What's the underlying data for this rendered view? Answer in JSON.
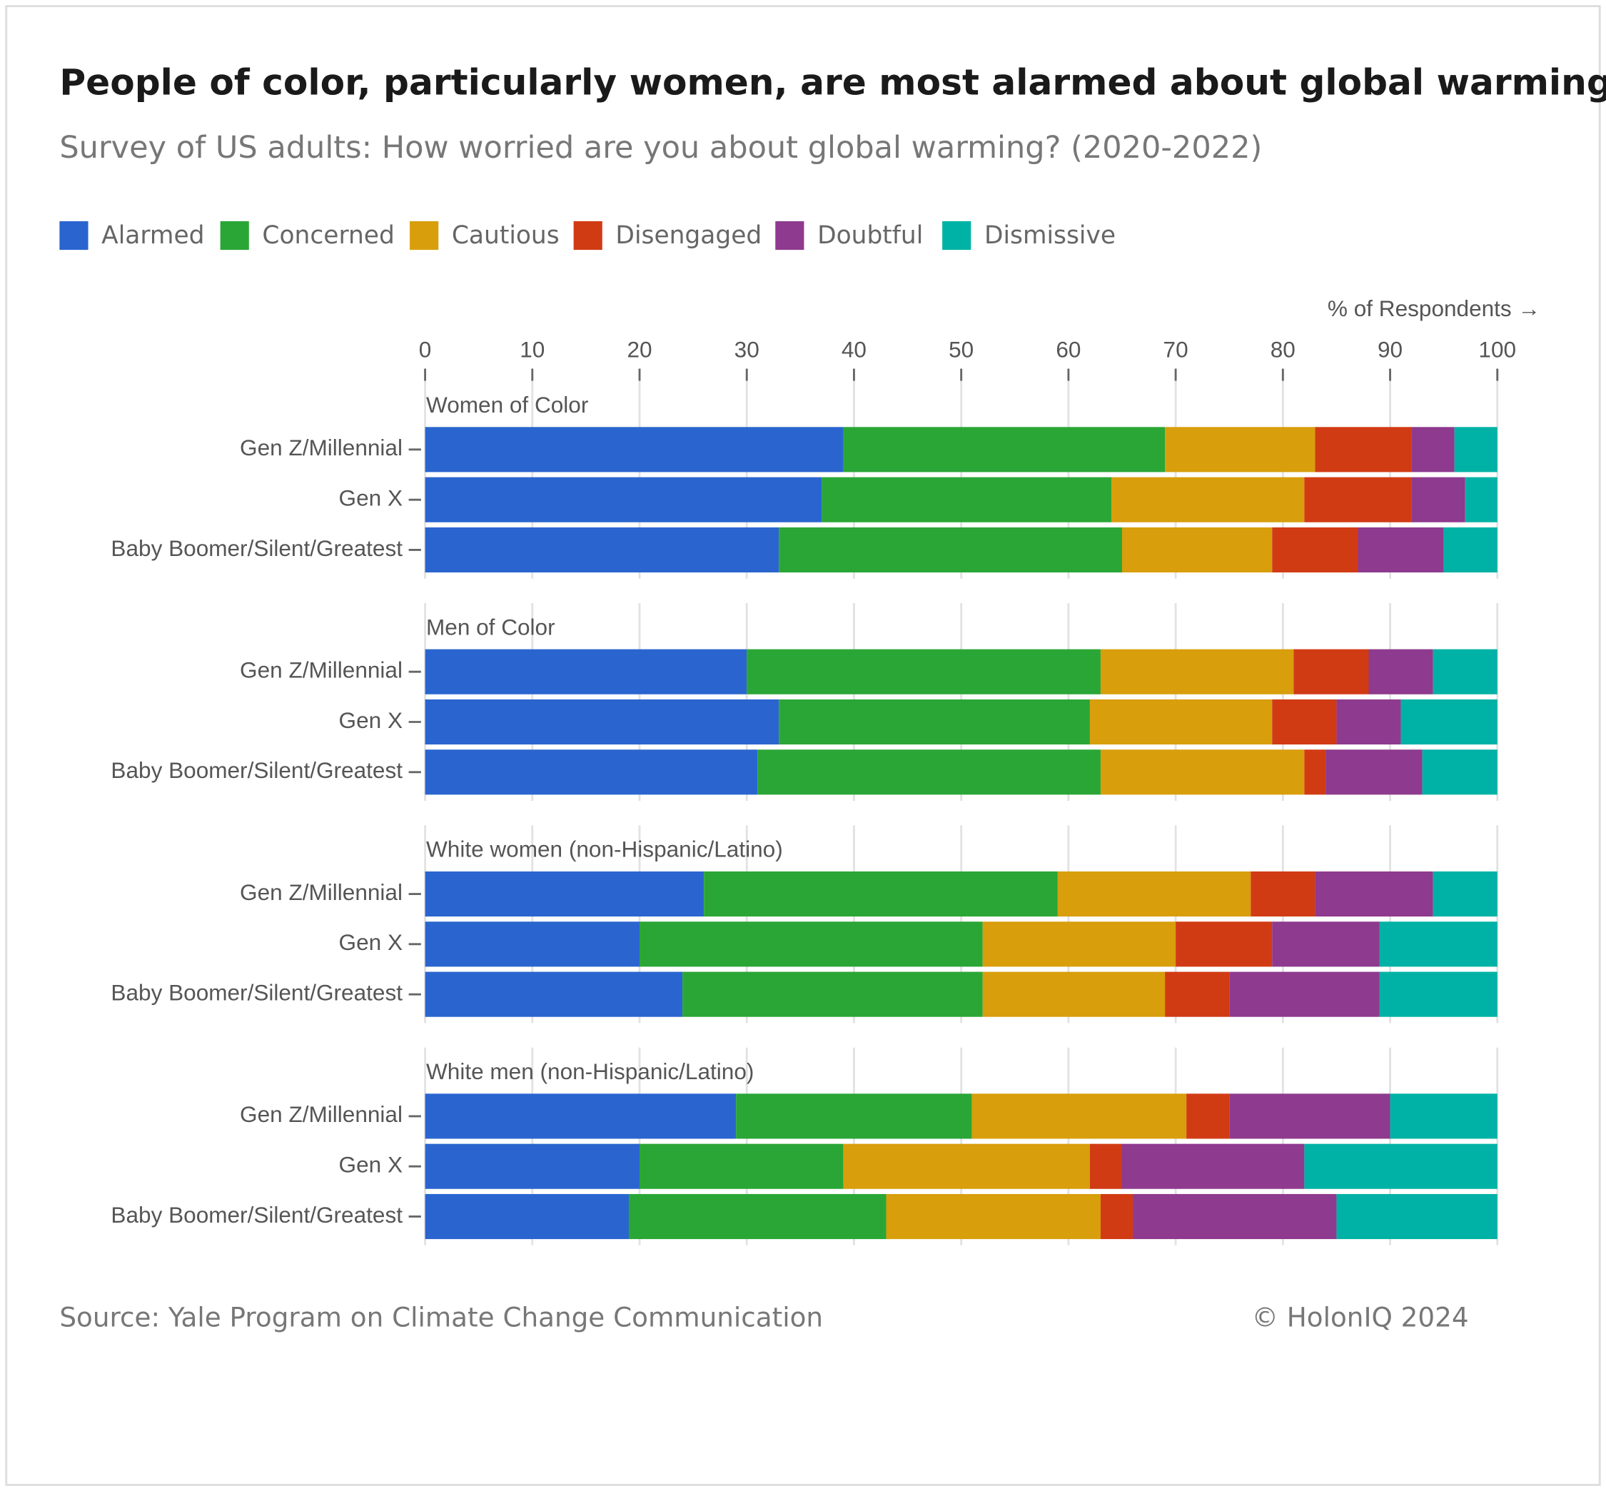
{
  "chart_data": {
    "type": "stacked-bar",
    "title": "People of color, particularly women, are most alarmed about global warming",
    "subtitle": "Survey of US adults: How worried are you about global warming? (2020-2022)",
    "x_label": "% of Respondents →",
    "xlim": [
      0,
      100
    ],
    "xticks": [
      0,
      10,
      20,
      30,
      40,
      50,
      60,
      70,
      80,
      90,
      100
    ],
    "grid": true,
    "legend": "top-left",
    "groups": [
      "Women of Color",
      "Men of Color",
      "White women (non-Hispanic/Latino)",
      "White men (non-Hispanic/Latino)"
    ],
    "categories": [
      "Gen Z/Millennial",
      "Gen X",
      "Baby Boomer/Silent/Greatest",
      "Gen Z/Millennial",
      "Gen X",
      "Baby Boomer/Silent/Greatest",
      "Gen Z/Millennial",
      "Gen X",
      "Baby Boomer/Silent/Greatest",
      "Gen Z/Millennial",
      "Gen X",
      "Baby Boomer/Silent/Greatest"
    ],
    "series": [
      {
        "name": "Alarmed",
        "color": "#2a65cf",
        "values": [
          39,
          37,
          33,
          30,
          33,
          31,
          26,
          20,
          24,
          29,
          20,
          19
        ]
      },
      {
        "name": "Concerned",
        "color": "#2aa636",
        "values": [
          30,
          27,
          32,
          33,
          29,
          32,
          33,
          32,
          28,
          22,
          19,
          24
        ]
      },
      {
        "name": "Cautious",
        "color": "#d89e0c",
        "values": [
          14,
          18,
          14,
          18,
          17,
          19,
          18,
          18,
          17,
          20,
          23,
          20
        ]
      },
      {
        "name": "Disengaged",
        "color": "#d13b14",
        "values": [
          9,
          10,
          8,
          7,
          6,
          2,
          6,
          9,
          6,
          4,
          3,
          3
        ]
      },
      {
        "name": "Doubtful",
        "color": "#8e3a8e",
        "values": [
          4,
          5,
          8,
          6,
          6,
          9,
          11,
          10,
          14,
          15,
          17,
          19
        ]
      },
      {
        "name": "Dismissive",
        "color": "#00b2a5",
        "values": [
          4,
          3,
          5,
          6,
          9,
          7,
          6,
          11,
          11,
          10,
          18,
          15
        ]
      }
    ],
    "source": "Source: Yale Program on Climate Change Communication",
    "credit": "© HolonIQ 2024"
  }
}
